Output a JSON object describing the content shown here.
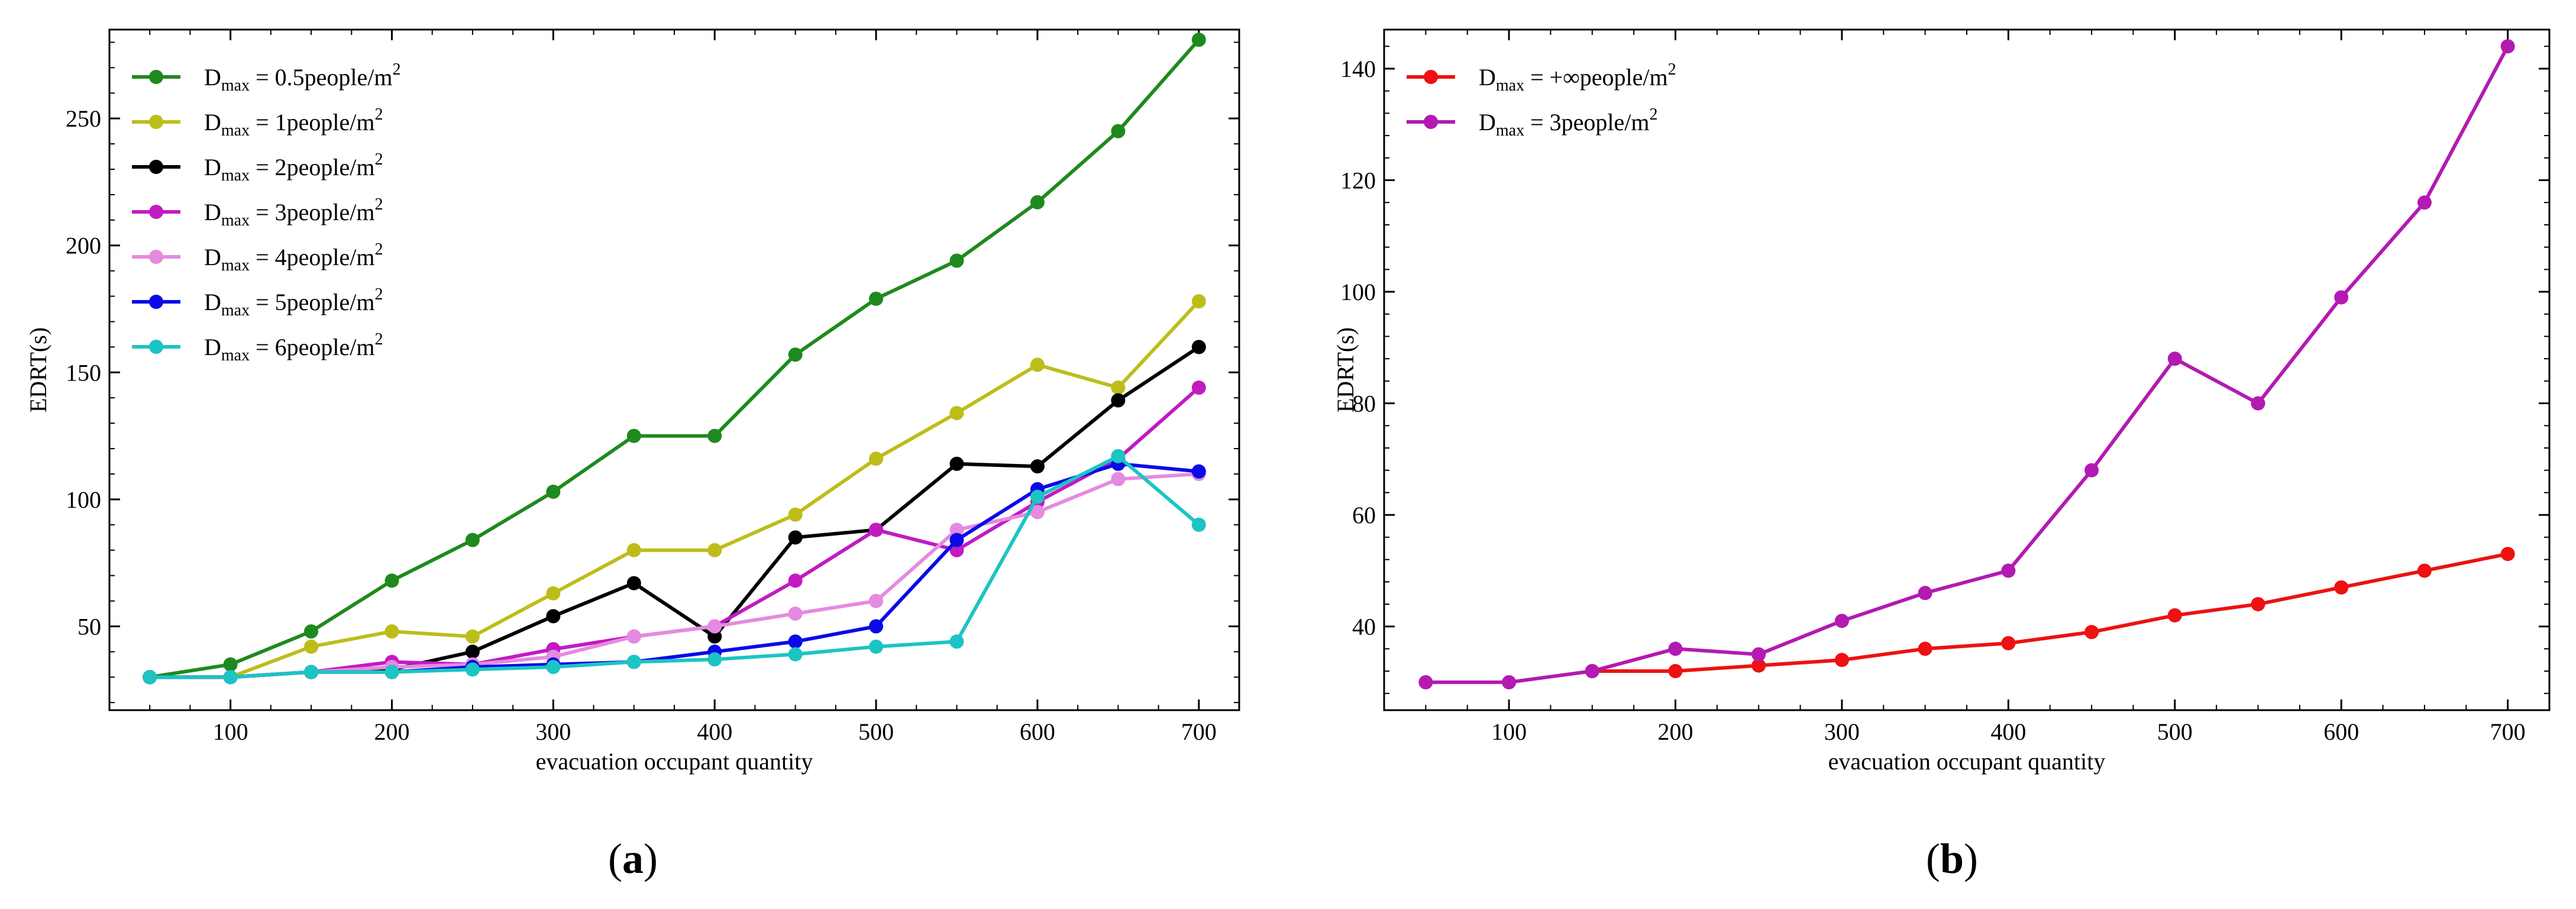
{
  "chart_data": [
    {
      "panel": "(a)",
      "type": "line",
      "xlabel": "evacuation occupant quantity",
      "ylabel": "EDRT(s)",
      "xlim": [
        25,
        725
      ],
      "ylim": [
        17,
        285
      ],
      "xticks": [
        100,
        200,
        300,
        400,
        500,
        600,
        700
      ],
      "yticks": [
        50,
        100,
        150,
        200,
        250
      ],
      "legend_position": "top-left",
      "x": [
        50,
        100,
        150,
        200,
        250,
        300,
        350,
        400,
        450,
        500,
        550,
        600,
        650,
        700
      ],
      "series": [
        {
          "name": "D",
          "sub": "max",
          "suffix": " = 0.5people/m",
          "sup": "2",
          "color": "#1e8a1e",
          "values": [
            30,
            35,
            48,
            68,
            84,
            103,
            125,
            125,
            157,
            179,
            194,
            217,
            245,
            281
          ]
        },
        {
          "name": "D",
          "sub": "max",
          "suffix": " = 1people/m",
          "sup": "2",
          "color": "#bdbd1a",
          "values": [
            30,
            30,
            42,
            48,
            46,
            63,
            80,
            80,
            94,
            116,
            134,
            153,
            144,
            178
          ]
        },
        {
          "name": "D",
          "sub": "max",
          "suffix": " = 2people/m",
          "sup": "2",
          "color": "#000000",
          "values": [
            30,
            30,
            32,
            33,
            40,
            54,
            67,
            46,
            85,
            88,
            114,
            113,
            139,
            160
          ]
        },
        {
          "name": "D",
          "sub": "max",
          "suffix": " = 3people/m",
          "sup": "2",
          "color": "#c21ac2",
          "values": [
            30,
            30,
            32,
            36,
            35,
            41,
            46,
            50,
            68,
            88,
            80,
            99,
            116,
            144
          ]
        },
        {
          "name": "D",
          "sub": "max",
          "suffix": " = 4people/m",
          "sup": "2",
          "color": "#e58ae0",
          "values": [
            30,
            30,
            32,
            34,
            35,
            38,
            46,
            50,
            55,
            60,
            88,
            95,
            108,
            110
          ]
        },
        {
          "name": "D",
          "sub": "max",
          "suffix": " = 5people/m",
          "sup": "2",
          "color": "#0a0ae8",
          "values": [
            30,
            30,
            32,
            32,
            34,
            35,
            36,
            40,
            44,
            50,
            84,
            104,
            114,
            111
          ]
        },
        {
          "name": "D",
          "sub": "max",
          "suffix": " = 6people/m",
          "sup": "2",
          "color": "#1cc4c4",
          "values": [
            30,
            30,
            32,
            32,
            33,
            34,
            36,
            37,
            39,
            42,
            44,
            101,
            117,
            90
          ]
        }
      ]
    },
    {
      "panel": "(b)",
      "type": "line",
      "xlabel": "evacuation occupant quantity",
      "ylabel": "EDRT(s)",
      "xlim": [
        25,
        725
      ],
      "ylim": [
        25,
        147
      ],
      "xticks": [
        100,
        200,
        300,
        400,
        500,
        600,
        700
      ],
      "yticks": [
        40,
        60,
        80,
        100,
        120,
        140
      ],
      "legend_position": "top-left",
      "series": [
        {
          "name": "D",
          "sub": "max",
          "suffix": " = +∞people/m",
          "sup": "2",
          "color": "#ee1111",
          "x": [
            150,
            200,
            250,
            300,
            350,
            400,
            450,
            500,
            550,
            600,
            650,
            700
          ],
          "values": [
            32,
            32,
            33,
            34,
            36,
            37,
            39,
            42,
            44,
            47,
            50,
            53
          ]
        },
        {
          "name": "D",
          "sub": "max",
          "suffix": " = 3people/m",
          "sup": "2",
          "color": "#b21ab2",
          "x": [
            50,
            100,
            150,
            200,
            250,
            300,
            350,
            400,
            450,
            500,
            550,
            600,
            650,
            700
          ],
          "values": [
            30,
            30,
            32,
            36,
            35,
            41,
            46,
            50,
            68,
            88,
            80,
            99,
            116,
            144
          ]
        }
      ]
    }
  ]
}
